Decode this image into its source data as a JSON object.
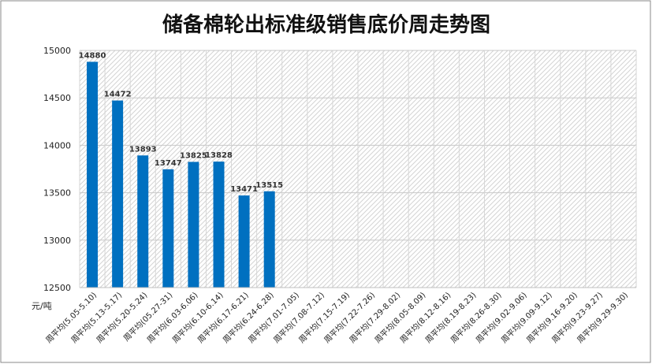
{
  "chart_data": {
    "type": "bar",
    "title": "储备棉轮出标准级销售底价周走势图",
    "ylabel": "元/吨",
    "xlabel": "",
    "ylim": [
      12500,
      15000
    ],
    "yticks": [
      12500,
      13000,
      13500,
      14000,
      14500,
      15000
    ],
    "grid": true,
    "bar_color": "#0070C0",
    "categories": [
      "周平均(5.05-5.10)",
      "周平均(5.13-5.17)",
      "周平均(5.20-5.24)",
      "周平均(05.27-31)",
      "周平均(6.03-6.06)",
      "周平均(6.10-6.14)",
      "周平均(6.17-6.21)",
      "周平均(6.24-6.28)",
      "周平均(7.01-7.05)",
      "周平均(7.08-7.12)",
      "周平均(7.15-7.19)",
      "周平均(7.22-7.26)",
      "周平均(7.29-8.02)",
      "周平均(8.05-8.09)",
      "周平均(8.12-8.16)",
      "周平均(8.19-8.23)",
      "周平均(8.26-8.30)",
      "周平均(9.02-9.06)",
      "周平均(9.09-9.12)",
      "周平均(9.16-9.20)",
      "周平均(9.23-9.27)",
      "周平均(9.29-9.30)"
    ],
    "values": [
      14880,
      14472,
      13893,
      13747,
      13825,
      13828,
      13471,
      13515,
      null,
      null,
      null,
      null,
      null,
      null,
      null,
      null,
      null,
      null,
      null,
      null,
      null,
      null
    ]
  }
}
